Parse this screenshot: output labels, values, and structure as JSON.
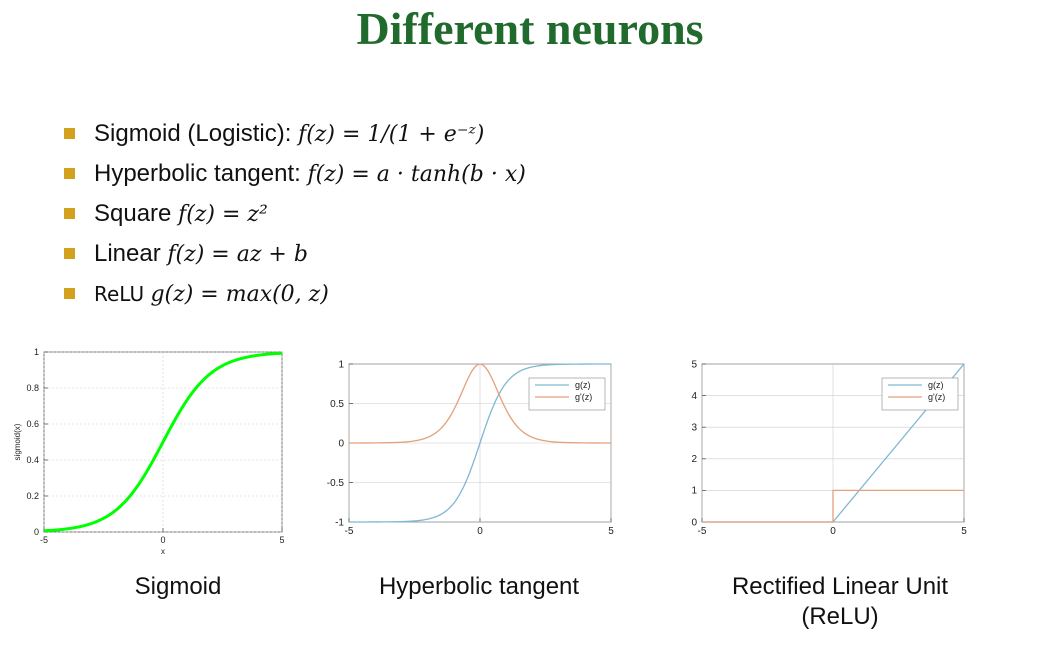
{
  "slide": {
    "title": "Different neurons",
    "bullets": [
      {
        "label": "Sigmoid (Logistic): ",
        "formula": "f(z) = 1/(1 + e⁻ᶻ)"
      },
      {
        "label": "Hyperbolic tangent: ",
        "formula": "f(z) = a · tanh(b · x)"
      },
      {
        "label": "Square ",
        "formula": "f(z) = z²"
      },
      {
        "label": "Linear ",
        "formula": "f(z) = az + b"
      },
      {
        "label": "ReLU ",
        "formula": "g(z) = max(0, z)"
      }
    ],
    "captions": {
      "sigmoid": "Sigmoid",
      "tanh": "Hyperbolic tangent",
      "relu_line1": "Rectified Linear Unit",
      "relu_line2": "(ReLU)"
    },
    "colors": {
      "title": "#1f6a2c",
      "bullet": "#d4a11c",
      "sigmoid": "#00ff00",
      "g": "#7fb8d4",
      "gprime": "#e3a07a"
    }
  },
  "chart_data": [
    {
      "type": "line",
      "xlabel": "x",
      "ylabel": "sigmoid(x)",
      "xlim": [
        -5,
        5
      ],
      "ylim": [
        0,
        1
      ],
      "xticks": [
        -5,
        0,
        5
      ],
      "yticks": [
        0,
        0.2,
        0.4,
        0.6,
        0.8,
        1
      ],
      "grid": true,
      "x": [
        -5,
        -4,
        -3,
        -2,
        -1,
        0,
        1,
        2,
        3,
        4,
        5
      ],
      "series": [
        {
          "values": [
            0.007,
            0.018,
            0.047,
            0.119,
            0.269,
            0.5,
            0.731,
            0.881,
            0.953,
            0.982,
            0.993
          ]
        }
      ]
    },
    {
      "type": "line",
      "xlim": [
        -5,
        5
      ],
      "ylim": [
        -1,
        1
      ],
      "xticks": [
        -5,
        0,
        5
      ],
      "yticks": [
        -1,
        -0.5,
        0,
        0.5,
        1
      ],
      "grid": true,
      "legend": "top-right",
      "x": [
        -5,
        -4,
        -3,
        -2,
        -1.5,
        -1,
        -0.5,
        0,
        0.5,
        1,
        1.5,
        2,
        3,
        4,
        5
      ],
      "series": [
        {
          "name": "g(z)",
          "values": [
            -1,
            -0.999,
            -0.995,
            -0.964,
            -0.905,
            -0.762,
            -0.462,
            0,
            0.462,
            0.762,
            0.905,
            0.964,
            0.995,
            0.999,
            1
          ]
        },
        {
          "name": "g'(z)",
          "values": [
            0,
            0.001,
            0.01,
            0.071,
            0.181,
            0.42,
            0.786,
            1,
            0.786,
            0.42,
            0.181,
            0.071,
            0.01,
            0.001,
            0
          ]
        }
      ]
    },
    {
      "type": "line",
      "xlim": [
        -5,
        5
      ],
      "ylim": [
        0,
        5
      ],
      "xticks": [
        -5,
        0,
        5
      ],
      "yticks": [
        0,
        1,
        2,
        3,
        4,
        5
      ],
      "grid": true,
      "legend": "top-right",
      "x": [
        -5,
        0,
        0,
        5
      ],
      "series": [
        {
          "name": "g(z)",
          "values": [
            0,
            0,
            0,
            5
          ]
        },
        {
          "name": "g'(z)",
          "values": [
            0,
            0,
            1,
            1
          ]
        }
      ]
    }
  ]
}
